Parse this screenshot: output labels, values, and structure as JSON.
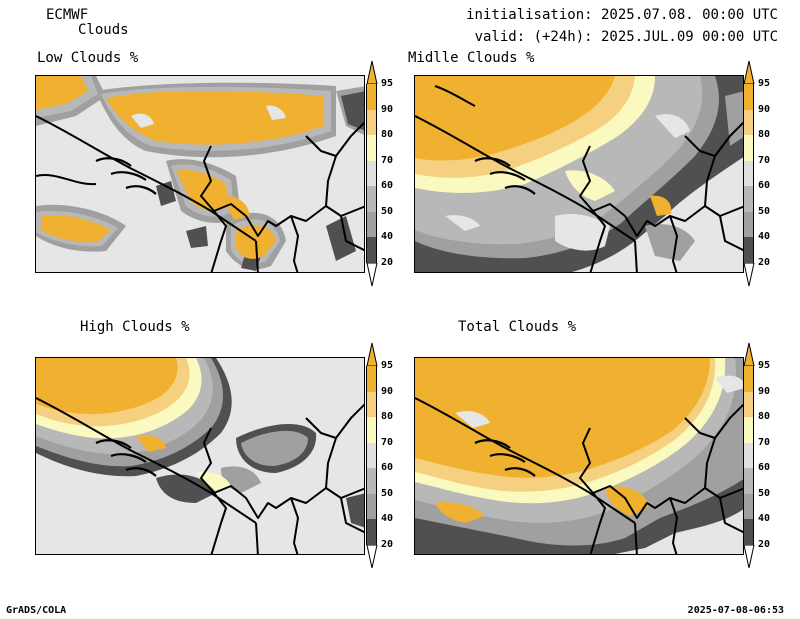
{
  "header": {
    "model": "ECMWF",
    "product": "Clouds",
    "init": "initialisation: 2025.07.08. 00:00 UTC",
    "valid": "valid: (+24h): 2025.JUL.09 00:00 UTC"
  },
  "panels": [
    {
      "title": "Low Clouds %"
    },
    {
      "title": "Midlle Clouds %"
    },
    {
      "title": "High Clouds %"
    },
    {
      "title": "Total Clouds %"
    }
  ],
  "colorbar": {
    "labels": [
      "95",
      "90",
      "80",
      "70",
      "60",
      "50",
      "40",
      "20"
    ],
    "colors": {
      "top": "#f0b030",
      "c95": "#f0b030",
      "c90": "#f5d080",
      "c80": "#fafac0",
      "c70": "#e0e0e0",
      "c60": "#b8b8b8",
      "c50": "#a0a0a0",
      "c40": "#505050",
      "bottom": "#ffffff"
    }
  },
  "footer": {
    "left": "GrADS/COLA",
    "right": "2025-07-08-06:53"
  }
}
